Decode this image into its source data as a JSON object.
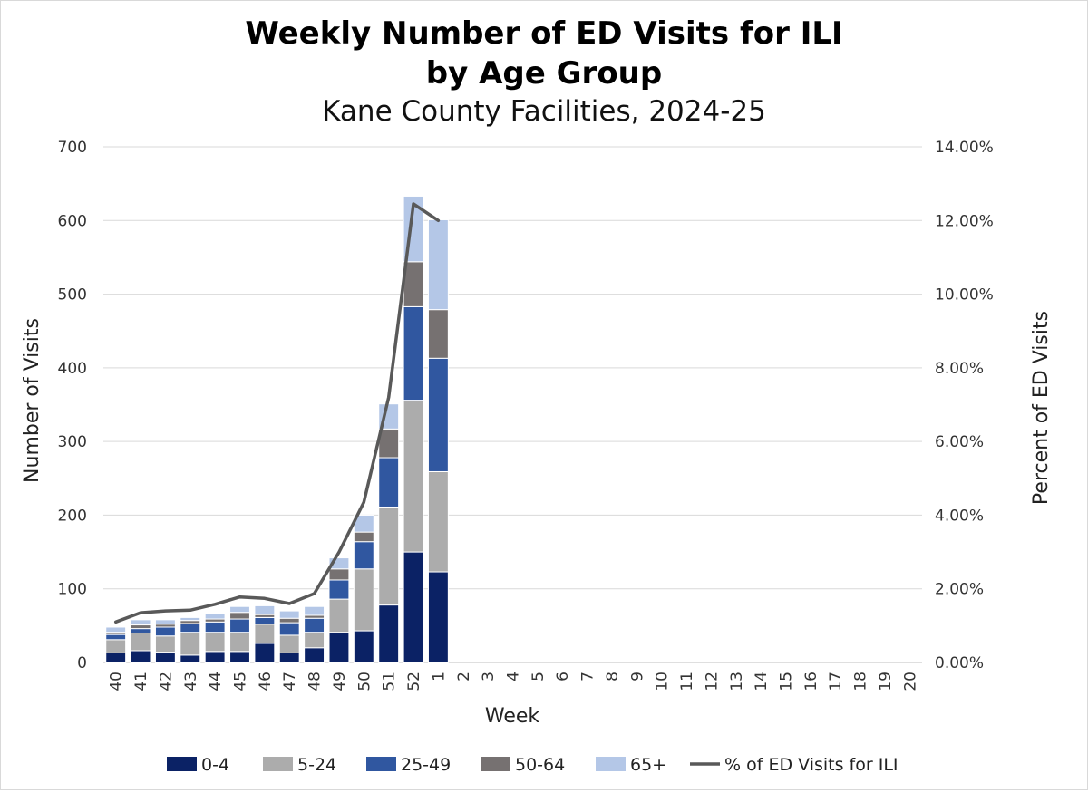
{
  "chart_data": {
    "type": "bar",
    "stacked": true,
    "title_line1": "Weekly Number of ED Visits for ILI",
    "title_line2": "by Age Group",
    "subtitle": "Kane County Facilities, 2024-25",
    "xlabel": "Week",
    "ylabel": "Number of Visits",
    "y2label": "Percent of ED Visits",
    "ylim": [
      0,
      700
    ],
    "y_ticks": [
      "0",
      "100",
      "200",
      "300",
      "400",
      "500",
      "600",
      "700"
    ],
    "y2lim": [
      0,
      14
    ],
    "y2_ticks": [
      "0.00%",
      "2.00%",
      "4.00%",
      "6.00%",
      "8.00%",
      "10.00%",
      "12.00%",
      "14.00%"
    ],
    "grid": true,
    "categories": [
      "40",
      "41",
      "42",
      "43",
      "44",
      "45",
      "46",
      "47",
      "48",
      "49",
      "50",
      "51",
      "52",
      "1",
      "2",
      "3",
      "4",
      "5",
      "6",
      "7",
      "8",
      "9",
      "10",
      "11",
      "12",
      "13",
      "14",
      "15",
      "16",
      "17",
      "18",
      "19",
      "20"
    ],
    "series": [
      {
        "name": "0-4",
        "color": "#0b2265",
        "values": [
          13,
          16,
          14,
          10,
          15,
          15,
          26,
          13,
          20,
          41,
          43,
          78,
          150,
          123,
          null,
          null,
          null,
          null,
          null,
          null,
          null,
          null,
          null,
          null,
          null,
          null,
          null,
          null,
          null,
          null,
          null,
          null,
          null
        ]
      },
      {
        "name": "5-24",
        "color": "#acacac",
        "values": [
          18,
          24,
          22,
          31,
          26,
          26,
          26,
          24,
          21,
          45,
          84,
          133,
          206,
          136,
          null,
          null,
          null,
          null,
          null,
          null,
          null,
          null,
          null,
          null,
          null,
          null,
          null,
          null,
          null,
          null,
          null,
          null,
          null
        ]
      },
      {
        "name": "25-49",
        "color": "#3057a0",
        "values": [
          7,
          6,
          12,
          12,
          14,
          18,
          9,
          17,
          19,
          26,
          37,
          67,
          127,
          154,
          null,
          null,
          null,
          null,
          null,
          null,
          null,
          null,
          null,
          null,
          null,
          null,
          null,
          null,
          null,
          null,
          null,
          null,
          null
        ]
      },
      {
        "name": "50-64",
        "color": "#767171",
        "values": [
          3,
          5,
          4,
          4,
          4,
          9,
          4,
          6,
          4,
          15,
          13,
          39,
          61,
          66,
          null,
          null,
          null,
          null,
          null,
          null,
          null,
          null,
          null,
          null,
          null,
          null,
          null,
          null,
          null,
          null,
          null,
          null,
          null
        ]
      },
      {
        "name": "65+",
        "color": "#b4c7e7",
        "values": [
          7,
          7,
          6,
          4,
          7,
          8,
          12,
          10,
          12,
          15,
          23,
          34,
          89,
          122,
          null,
          null,
          null,
          null,
          null,
          null,
          null,
          null,
          null,
          null,
          null,
          null,
          null,
          null,
          null,
          null,
          null,
          null,
          null
        ]
      }
    ],
    "line_series": {
      "name": "% of ED Visits for ILI",
      "color": "#595959",
      "axis": "right",
      "values": [
        1.1,
        1.35,
        1.4,
        1.42,
        1.58,
        1.78,
        1.74,
        1.6,
        1.87,
        3.0,
        4.35,
        7.2,
        12.45,
        12.0,
        null,
        null,
        null,
        null,
        null,
        null,
        null,
        null,
        null,
        null,
        null,
        null,
        null,
        null,
        null,
        null,
        null,
        null,
        null
      ]
    },
    "legend_position": "bottom"
  }
}
